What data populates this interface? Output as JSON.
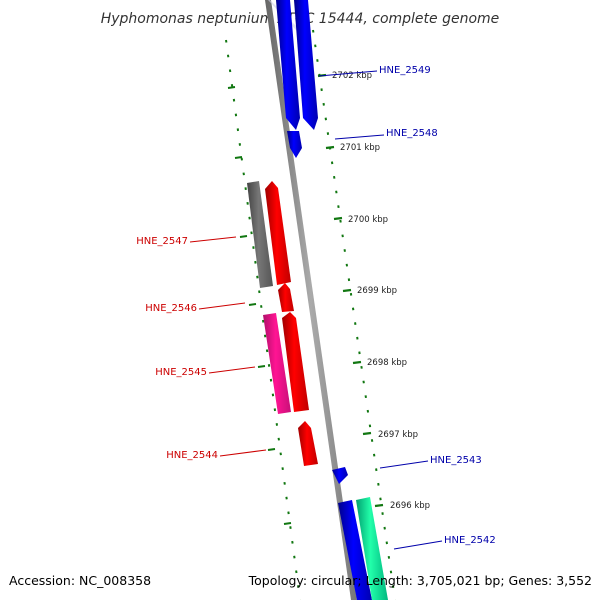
{
  "title": "Hyphomonas neptunium ATCC 15444, complete genome",
  "footer": {
    "accession": "Accession: NC_008358",
    "summary": "Topology: circular; Length: 3,705,021 bp; Genes: 3,552"
  },
  "colors": {
    "backbone": "#808080",
    "tick_marks": "#117711",
    "forward_strand_label": "#0000aa",
    "reverse_strand_label": "#cc0000"
  },
  "scale_ticks": [
    {
      "kbp": 2702,
      "label": "2702 kbp"
    },
    {
      "kbp": 2701,
      "label": "2701 kbp"
    },
    {
      "kbp": 2700,
      "label": "2700 kbp"
    },
    {
      "kbp": 2699,
      "label": "2699 kbp"
    },
    {
      "kbp": 2698,
      "label": "2698 kbp"
    },
    {
      "kbp": 2697,
      "label": "2697 kbp"
    },
    {
      "kbp": 2696,
      "label": "2696 kbp"
    }
  ],
  "genes_forward": [
    {
      "name": "HNE_2549",
      "color": "#0000ee",
      "label_color": "#0000aa"
    },
    {
      "name": "HNE_2548",
      "color": "#0000ee",
      "label_color": "#0000aa"
    },
    {
      "name": "HNE_2543",
      "color": "#0000ee",
      "label_color": "#0000aa"
    },
    {
      "name": "HNE_2542",
      "color": "#00dd99",
      "label_color": "#0000aa"
    }
  ],
  "genes_reverse": [
    {
      "name": "HNE_2547",
      "color": "#ff0000",
      "label_color": "#cc0000"
    },
    {
      "name": "HNE_2546",
      "color": "#ff0000",
      "label_color": "#cc0000"
    },
    {
      "name": "HNE_2545",
      "color": "#ff0000",
      "label_color": "#cc0000"
    },
    {
      "name": "HNE_2544",
      "color": "#ff0000",
      "label_color": "#cc0000"
    }
  ],
  "unlabeled_features": [
    {
      "kind": "gray-block",
      "color": "#666666"
    },
    {
      "kind": "magenta-block",
      "color": "#ff1493"
    }
  ]
}
